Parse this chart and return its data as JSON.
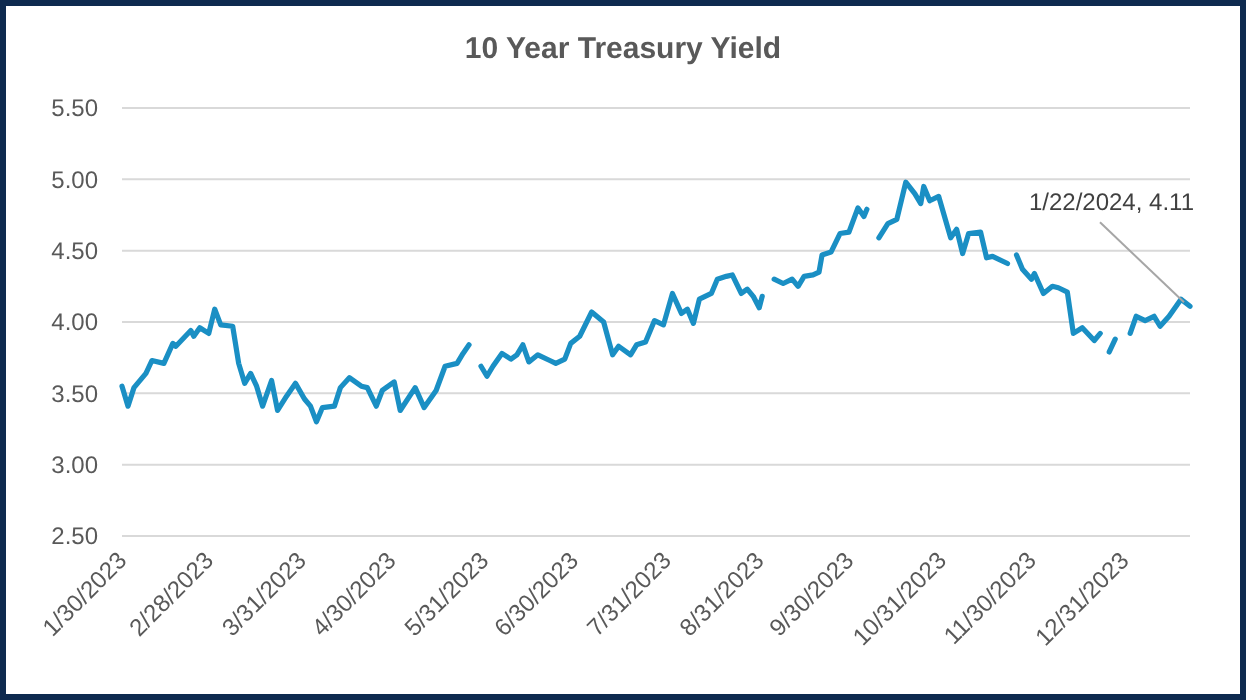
{
  "chart_data": {
    "type": "line",
    "title": "10 Year Treasury Yield",
    "x": [
      "2023-01-30",
      "2023-02-01",
      "2023-02-03",
      "2023-02-07",
      "2023-02-09",
      "2023-02-13",
      "2023-02-16",
      "2023-02-17",
      "2023-02-22",
      "2023-02-23",
      "2023-02-25",
      "2023-02-28",
      "2023-03-02",
      "2023-03-04",
      "2023-03-08",
      "2023-03-10",
      "2023-03-12",
      "2023-03-14",
      "2023-03-16",
      "2023-03-18",
      "2023-03-21",
      "2023-03-23",
      "2023-03-26",
      "2023-03-29",
      "2023-04-01",
      "2023-04-03",
      "2023-04-05",
      "2023-04-07",
      "2023-04-11",
      "2023-04-13",
      "2023-04-16",
      "2023-04-20",
      "2023-04-22",
      "2023-04-25",
      "2023-04-27",
      "2023-05-01",
      "2023-05-03",
      "2023-05-08",
      "2023-05-11",
      "2023-05-15",
      "2023-05-18",
      "2023-05-22",
      "2023-05-24",
      "2023-05-26",
      "2023-05-28",
      "2023-05-30",
      "2023-06-01",
      "2023-06-03",
      "2023-06-06",
      "2023-06-09",
      "2023-06-11",
      "2023-06-13",
      "2023-06-15",
      "2023-06-18",
      "2023-06-22",
      "2023-06-24",
      "2023-06-27",
      "2023-06-29",
      "2023-07-02",
      "2023-07-06",
      "2023-07-10",
      "2023-07-13",
      "2023-07-15",
      "2023-07-19",
      "2023-07-21",
      "2023-07-24",
      "2023-07-27",
      "2023-07-30",
      "2023-08-02",
      "2023-08-05",
      "2023-08-07",
      "2023-08-09",
      "2023-08-11",
      "2023-08-15",
      "2023-08-17",
      "2023-08-20",
      "2023-08-22",
      "2023-08-25",
      "2023-08-27",
      "2023-08-29",
      "2023-08-31",
      "2023-09-01",
      "2023-09-03",
      "2023-09-05",
      "2023-09-08",
      "2023-09-11",
      "2023-09-13",
      "2023-09-15",
      "2023-09-18",
      "2023-09-20",
      "2023-09-21",
      "2023-09-24",
      "2023-09-27",
      "2023-09-30",
      "2023-10-03",
      "2023-10-05",
      "2023-10-06",
      "2023-10-08",
      "2023-10-10",
      "2023-10-13",
      "2023-10-16",
      "2023-10-19",
      "2023-10-22",
      "2023-10-24",
      "2023-10-25",
      "2023-10-27",
      "2023-10-30",
      "2023-11-03",
      "2023-11-05",
      "2023-11-07",
      "2023-11-09",
      "2023-11-13",
      "2023-11-15",
      "2023-11-17",
      "2023-11-22",
      "2023-11-23",
      "2023-11-25",
      "2023-11-27",
      "2023-11-30",
      "2023-12-01",
      "2023-12-04",
      "2023-12-07",
      "2023-12-09",
      "2023-12-12",
      "2023-12-14",
      "2023-12-17",
      "2023-12-21",
      "2023-12-23",
      "2023-12-25",
      "2023-12-26",
      "2023-12-28",
      "2023-12-30",
      "2024-01-02",
      "2024-01-04",
      "2024-01-07",
      "2024-01-10",
      "2024-01-12",
      "2024-01-15",
      "2024-01-19",
      "2024-01-22"
    ],
    "series": [
      {
        "color": "#1a8fc4",
        "values": [
          3.55,
          3.41,
          3.54,
          3.64,
          3.73,
          3.71,
          3.85,
          3.83,
          3.94,
          3.9,
          3.96,
          3.92,
          4.09,
          3.98,
          3.97,
          3.71,
          3.57,
          3.64,
          3.55,
          3.41,
          3.59,
          3.38,
          3.48,
          3.57,
          3.46,
          3.41,
          3.3,
          3.4,
          3.41,
          3.54,
          3.61,
          3.55,
          3.54,
          3.41,
          3.52,
          3.58,
          3.38,
          3.54,
          3.4,
          3.52,
          3.69,
          3.71,
          3.78,
          3.84,
          null,
          3.69,
          3.62,
          3.69,
          3.78,
          3.74,
          3.77,
          3.84,
          3.72,
          3.77,
          3.73,
          3.71,
          3.74,
          3.85,
          3.9,
          4.07,
          4.0,
          3.77,
          3.83,
          3.77,
          3.84,
          3.86,
          4.01,
          3.98,
          4.2,
          4.06,
          4.09,
          3.99,
          4.16,
          4.2,
          4.3,
          4.32,
          4.33,
          4.2,
          4.23,
          4.18,
          4.1,
          4.18,
          null,
          4.3,
          4.27,
          4.3,
          4.25,
          4.32,
          4.33,
          4.35,
          4.47,
          4.49,
          4.62,
          4.63,
          4.8,
          4.74,
          4.79,
          null,
          4.59,
          4.69,
          4.72,
          4.98,
          4.9,
          4.83,
          4.95,
          4.85,
          4.88,
          4.59,
          4.65,
          4.48,
          4.62,
          4.63,
          4.45,
          4.46,
          4.41,
          null,
          4.47,
          4.37,
          4.3,
          4.34,
          4.2,
          4.25,
          4.24,
          4.21,
          3.92,
          3.96,
          3.87,
          3.92,
          null,
          3.79,
          3.88,
          null,
          3.92,
          4.04,
          4.01,
          4.04,
          3.97,
          4.04,
          4.16,
          4.11
        ]
      }
    ],
    "xlim": [
      "2023-01-30",
      "2024-01-22"
    ],
    "xticks": [
      {
        "value": "2023-01-30",
        "label": "1/30/2023"
      },
      {
        "value": "2023-02-28",
        "label": "2/28/2023"
      },
      {
        "value": "2023-03-31",
        "label": "3/31/2023"
      },
      {
        "value": "2023-04-30",
        "label": "4/30/2023"
      },
      {
        "value": "2023-05-31",
        "label": "5/31/2023"
      },
      {
        "value": "2023-06-30",
        "label": "6/30/2023"
      },
      {
        "value": "2023-07-31",
        "label": "7/31/2023"
      },
      {
        "value": "2023-08-31",
        "label": "8/31/2023"
      },
      {
        "value": "2023-09-30",
        "label": "9/30/2023"
      },
      {
        "value": "2023-10-31",
        "label": "10/31/2023"
      },
      {
        "value": "2023-11-30",
        "label": "11/30/2023"
      },
      {
        "value": "2023-12-31",
        "label": "12/31/2023"
      }
    ],
    "ylim": [
      2.5,
      5.5
    ],
    "yticks": [
      {
        "value": 2.5,
        "label": "2.50"
      },
      {
        "value": 3,
        "label": "3.00"
      },
      {
        "value": 3.5,
        "label": "3.50"
      },
      {
        "value": 4,
        "label": "4.00"
      },
      {
        "value": 4.5,
        "label": "4.50"
      },
      {
        "value": 5,
        "label": "5.00"
      },
      {
        "value": 5.5,
        "label": "5.50"
      }
    ],
    "grid": "y",
    "annotations": [
      {
        "text": "1/22/2024, 4.11",
        "x": "2024-01-22",
        "y": 4.11
      }
    ]
  }
}
